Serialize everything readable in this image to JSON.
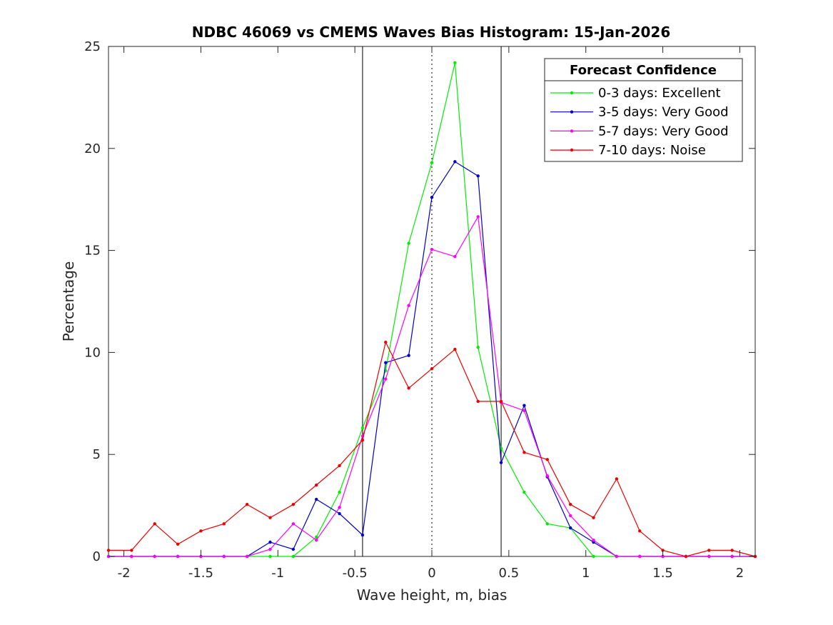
{
  "chart_data": {
    "type": "line",
    "title": "NDBC 46069 vs CMEMS Waves Bias Histogram: 15-Jan-2026",
    "xlabel": "Wave height, m, bias",
    "ylabel": "Percentage",
    "xlim": [
      -2.1,
      2.1
    ],
    "ylim": [
      0,
      25
    ],
    "xticks": [
      -2,
      -1.5,
      -1,
      -0.5,
      0,
      0.5,
      1,
      1.5,
      2
    ],
    "xtick_labels": [
      "-2",
      "-1.5",
      "-1",
      "-0.5",
      "0",
      "0.5",
      "1",
      "1.5",
      "2"
    ],
    "yticks": [
      0,
      5,
      10,
      15,
      20,
      25
    ],
    "ytick_labels": [
      "0",
      "5",
      "10",
      "15",
      "20",
      "25"
    ],
    "grid": false,
    "reference_lines": [
      {
        "x": -0.45,
        "style": "solid"
      },
      {
        "x": 0,
        "style": "dotted"
      },
      {
        "x": 0.45,
        "style": "solid"
      }
    ],
    "legend": {
      "title": "Forecast Confidence",
      "location": "top-right"
    },
    "x": [
      -2.1,
      -1.95,
      -1.8,
      -1.65,
      -1.5,
      -1.35,
      -1.2,
      -1.05,
      -0.9,
      -0.75,
      -0.6,
      -0.45,
      -0.3,
      -0.15,
      0,
      0.15,
      0.3,
      0.45,
      0.6,
      0.75,
      0.9,
      1.05,
      1.2,
      1.35,
      1.5,
      1.65,
      1.8,
      1.95,
      2.1
    ],
    "series": [
      {
        "name": "0-3 days: Excellent",
        "color": "#00ee00",
        "values": [
          0,
          0,
          0,
          0,
          0,
          0,
          0,
          0,
          0,
          0.95,
          3.15,
          6.3,
          9.1,
          15.35,
          19.3,
          24.2,
          10.25,
          5.3,
          3.15,
          1.6,
          1.4,
          0,
          0,
          0,
          0,
          0,
          0,
          0,
          0
        ]
      },
      {
        "name": "3-5 days: Very Good",
        "color": "#0000cc",
        "values": [
          0,
          0,
          0,
          0,
          0,
          0,
          0,
          0.7,
          0.35,
          2.8,
          2.1,
          1.05,
          9.5,
          9.85,
          17.6,
          19.35,
          18.65,
          4.6,
          7.4,
          3.9,
          1.4,
          0.7,
          0,
          0,
          0,
          0,
          0,
          0,
          0
        ]
      },
      {
        "name": "5-7 days: Very Good",
        "color": "#ff00ff",
        "values": [
          0,
          0,
          0,
          0,
          0,
          0,
          0,
          0.35,
          1.6,
          0.8,
          2.4,
          5.9,
          8.7,
          12.3,
          15.05,
          14.7,
          16.65,
          7.55,
          7.15,
          3.95,
          2.0,
          0.8,
          0,
          0,
          0,
          0,
          0,
          0,
          0
        ]
      },
      {
        "name": "7-10 days: Noise",
        "color": "#ee0000",
        "values": [
          0.3,
          0.3,
          1.6,
          0.6,
          1.25,
          1.6,
          2.55,
          1.9,
          2.55,
          3.5,
          4.45,
          5.7,
          10.5,
          8.25,
          9.2,
          10.15,
          7.6,
          7.6,
          5.1,
          4.75,
          2.55,
          1.9,
          3.8,
          1.25,
          0.3,
          0,
          0.3,
          0.3,
          0
        ]
      }
    ]
  }
}
